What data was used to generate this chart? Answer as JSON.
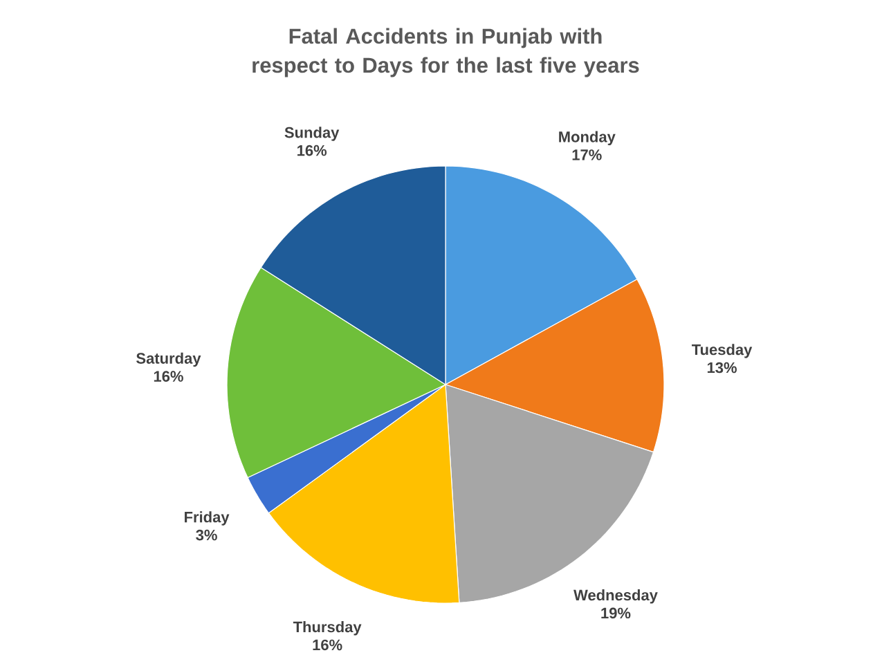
{
  "chart_data": {
    "type": "pie",
    "title": "Fatal Accidents in Punjab with respect to Days for the last five years",
    "categories": [
      "Monday",
      "Tuesday",
      "Wednesday",
      "Thursday",
      "Friday",
      "Saturday",
      "Sunday"
    ],
    "values": [
      17,
      13,
      19,
      16,
      3,
      16,
      16
    ],
    "value_labels": [
      "17%",
      "13%",
      "19%",
      "16%",
      "3%",
      "16%",
      "16%"
    ],
    "colors": [
      "#4a9be0",
      "#f07a1a",
      "#a6a6a6",
      "#ffc000",
      "#3a6fd0",
      "#6fbf3a",
      "#1f5c99"
    ]
  }
}
